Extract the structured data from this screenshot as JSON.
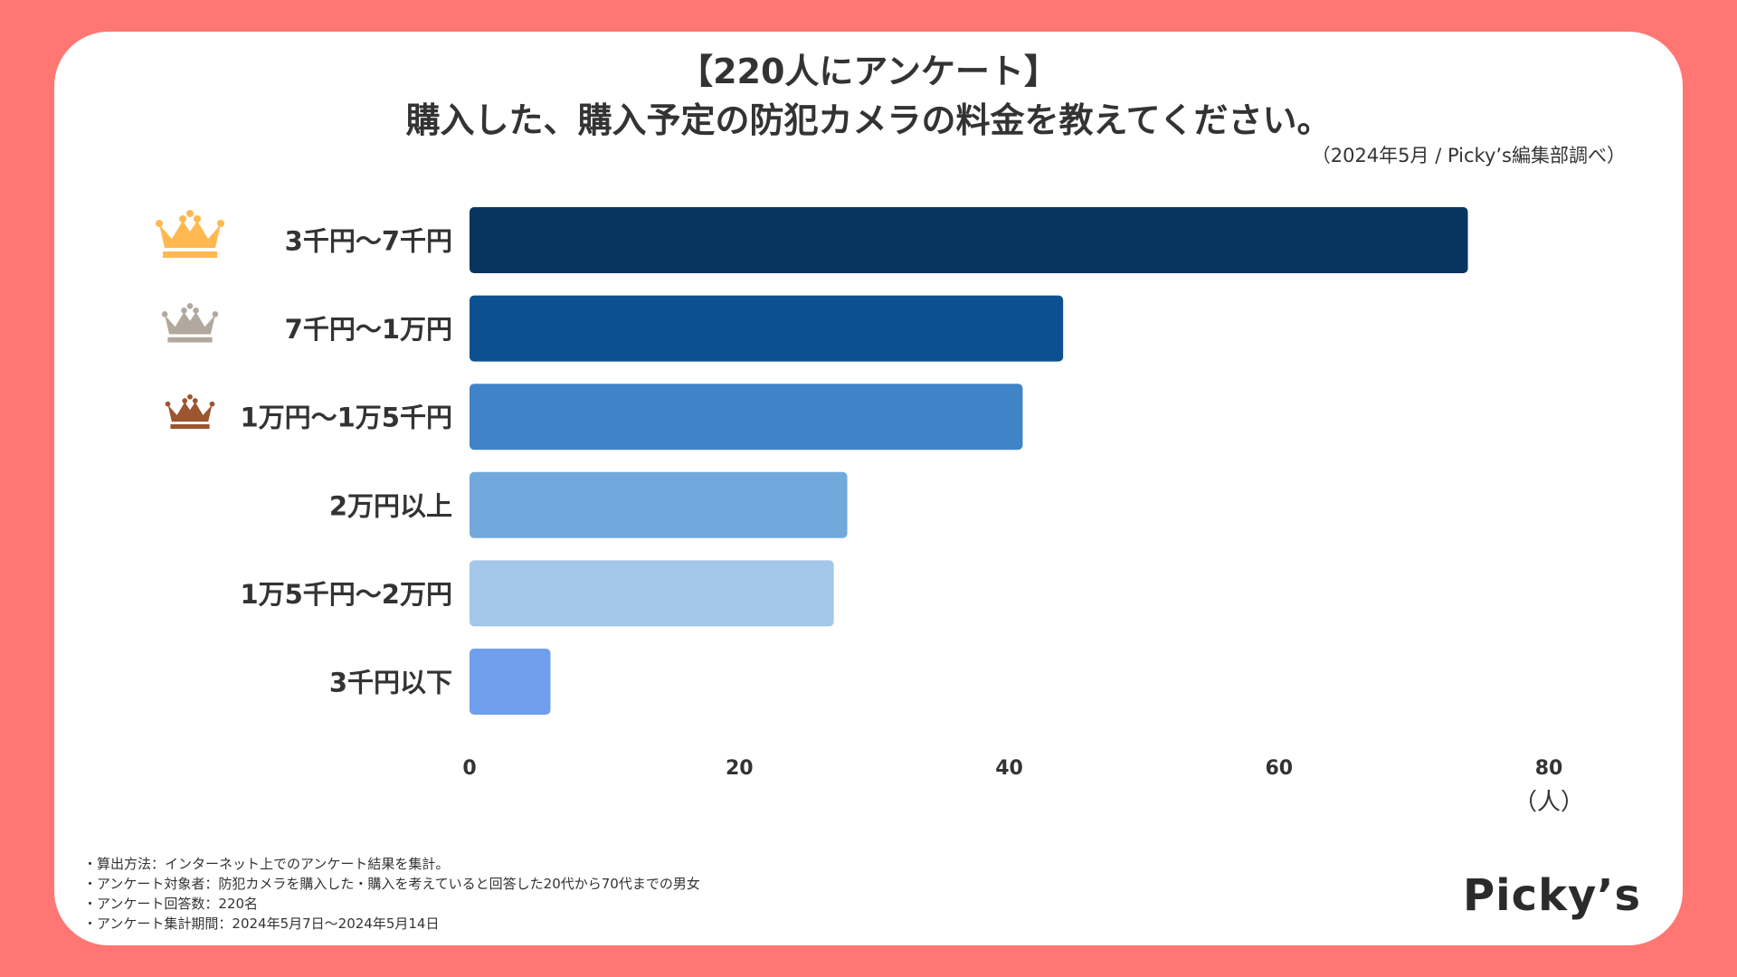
{
  "header": {
    "title_line1": "【220人にアンケート】",
    "title_line2": "購入した、購入予定の防犯カメラの料金を教えてください。",
    "source": "（2024年5月 / Picky’s編集部調べ）"
  },
  "chart_data": {
    "type": "bar",
    "orientation": "horizontal",
    "categories": [
      "3千円～7千円",
      "7千円～1万円",
      "1万円～1万5千円",
      "2万円以上",
      "1万5千円～2万円",
      "3千円以下"
    ],
    "values": [
      74,
      44,
      41,
      28,
      27,
      6
    ],
    "colors": [
      "#07355F",
      "#0D5092",
      "#4183C7",
      "#71A9DC",
      "#A2C7E9",
      "#6F9FEC"
    ],
    "xlim": [
      0,
      80
    ],
    "xticks": [
      "0",
      "20",
      "40",
      "60",
      "80"
    ],
    "xlabel": "（人）",
    "ranks": [
      {
        "rank": 1,
        "icon": "gold-crown-icon",
        "color": "#FFB950"
      },
      {
        "rank": 2,
        "icon": "silver-crown-icon",
        "color": "#B3A89E"
      },
      {
        "rank": 3,
        "icon": "bronze-crown-icon",
        "color": "#9D5530"
      }
    ]
  },
  "notes": [
    "・算出方法：インターネット上でのアンケート結果を集計。",
    "・アンケート対象者：防犯カメラを購入した・購入を考えていると回答した20代から70代までの男女",
    "・アンケート回答数：220名",
    "・アンケート集計期間：2024年5月7日～2024年5月14日"
  ],
  "logo": "Picky’s"
}
